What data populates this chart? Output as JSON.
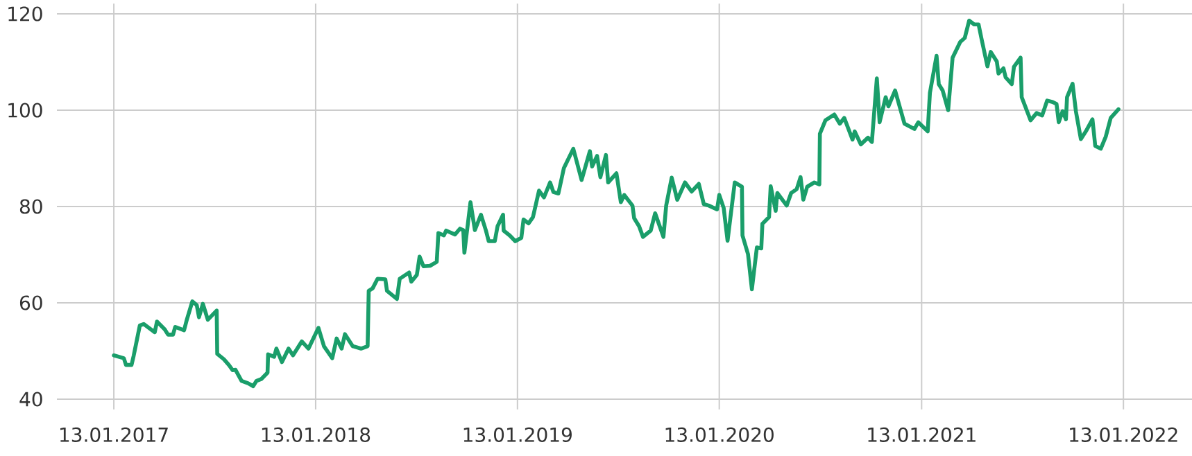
{
  "chart_data": {
    "type": "line",
    "color": "#1a9e6a",
    "grid": true,
    "xlim": [
      "2016-10-02",
      "2022-05-17"
    ],
    "ylim": [
      40,
      120
    ],
    "xticks": [
      {
        "value": "2017-01-13",
        "label": "13.01.2017"
      },
      {
        "value": "2018-01-13",
        "label": "13.01.2018"
      },
      {
        "value": "2019-01-13",
        "label": "13.01.2019"
      },
      {
        "value": "2020-01-13",
        "label": "13.01.2020"
      },
      {
        "value": "2021-01-13",
        "label": "13.01.2021"
      },
      {
        "value": "2022-01-13",
        "label": "13.01.2022"
      }
    ],
    "yticks": [
      40,
      60,
      80,
      100,
      120
    ],
    "x": [
      "2017-01-13",
      "2017-01-31",
      "2017-02-04",
      "2017-02-14",
      "2017-02-18",
      "2017-03-01",
      "2017-03-08",
      "2017-03-28",
      "2017-04-01",
      "2017-04-15",
      "2017-04-21",
      "2017-04-30",
      "2017-05-04",
      "2017-05-20",
      "2017-05-25",
      "2017-06-04",
      "2017-06-12",
      "2017-06-16",
      "2017-06-23",
      "2017-07-02",
      "2017-07-18",
      "2017-07-19",
      "2017-07-31",
      "2017-08-09",
      "2017-08-16",
      "2017-08-21",
      "2017-09-01",
      "2017-09-13",
      "2017-09-22",
      "2017-09-28",
      "2017-10-07",
      "2017-10-18",
      "2017-10-19",
      "2017-10-30",
      "2017-11-03",
      "2017-11-13",
      "2017-11-25",
      "2017-12-03",
      "2017-12-19",
      "2017-12-31",
      "2018-01-18",
      "2018-01-28",
      "2018-02-12",
      "2018-02-20",
      "2018-03-01",
      "2018-03-07",
      "2018-03-21",
      "2018-04-05",
      "2018-04-17",
      "2018-04-19",
      "2018-04-26",
      "2018-05-05",
      "2018-05-19",
      "2018-05-22",
      "2018-06-09",
      "2018-06-14",
      "2018-07-01",
      "2018-07-05",
      "2018-07-15",
      "2018-07-20",
      "2018-07-27",
      "2018-08-08",
      "2018-08-20",
      "2018-08-23",
      "2018-09-02",
      "2018-09-06",
      "2018-09-22",
      "2018-10-01",
      "2018-10-07",
      "2018-10-09",
      "2018-10-20",
      "2018-10-28",
      "2018-11-08",
      "2018-11-17",
      "2018-11-22",
      "2018-12-03",
      "2018-12-08",
      "2018-12-18",
      "2018-12-19",
      "2018-12-30",
      "2019-01-09",
      "2019-01-20",
      "2019-01-24",
      "2019-02-02",
      "2019-02-10",
      "2019-02-21",
      "2019-03-02",
      "2019-03-13",
      "2019-03-19",
      "2019-03-28",
      "2019-04-07",
      "2019-04-24",
      "2019-05-09",
      "2019-05-24",
      "2019-05-28",
      "2019-06-06",
      "2019-06-12",
      "2019-06-22",
      "2019-06-26",
      "2019-07-11",
      "2019-07-19",
      "2019-07-25",
      "2019-08-09",
      "2019-08-12",
      "2019-08-21",
      "2019-08-28",
      "2019-09-11",
      "2019-09-19",
      "2019-10-04",
      "2019-10-09",
      "2019-10-19",
      "2019-10-29",
      "2019-11-12",
      "2019-11-24",
      "2019-12-07",
      "2019-12-16",
      "2019-12-25",
      "2020-01-09",
      "2020-01-13",
      "2020-01-21",
      "2020-01-28",
      "2020-02-10",
      "2020-02-23",
      "2020-02-24",
      "2020-03-05",
      "2020-03-12",
      "2020-03-21",
      "2020-03-29",
      "2020-03-31",
      "2020-04-12",
      "2020-04-15",
      "2020-04-24",
      "2020-04-27",
      "2020-05-14",
      "2020-05-22",
      "2020-06-01",
      "2020-06-08",
      "2020-06-13",
      "2020-06-20",
      "2020-07-03",
      "2020-07-12",
      "2020-07-13",
      "2020-07-23",
      "2020-08-08",
      "2020-08-18",
      "2020-08-26",
      "2020-09-10",
      "2020-09-14",
      "2020-09-25",
      "2020-10-08",
      "2020-10-15",
      "2020-10-24",
      "2020-10-29",
      "2020-11-09",
      "2020-11-14",
      "2020-11-26",
      "2020-12-13",
      "2020-12-31",
      "2021-01-07",
      "2021-01-24",
      "2021-01-28",
      "2021-02-09",
      "2021-02-13",
      "2021-02-20",
      "2021-03-02",
      "2021-03-10",
      "2021-03-24",
      "2021-04-01",
      "2021-04-09",
      "2021-04-18",
      "2021-04-26",
      "2021-05-01",
      "2021-05-12",
      "2021-05-18",
      "2021-05-29",
      "2021-06-01",
      "2021-06-10",
      "2021-06-14",
      "2021-06-25",
      "2021-06-29",
      "2021-07-11",
      "2021-07-13",
      "2021-07-29",
      "2021-08-09",
      "2021-08-19",
      "2021-08-28",
      "2021-09-07",
      "2021-09-14",
      "2021-09-18",
      "2021-09-25",
      "2021-10-01",
      "2021-10-03",
      "2021-10-13",
      "2021-10-19",
      "2021-10-28",
      "2021-11-06",
      "2021-11-18",
      "2021-11-23",
      "2021-12-03",
      "2021-12-12",
      "2021-12-21",
      "2022-01-04"
    ],
    "values": [
      49.1,
      48.5,
      47.1,
      47.1,
      49.1,
      55.3,
      55.6,
      53.9,
      56.1,
      54.5,
      53.4,
      53.4,
      55.0,
      54.3,
      56.5,
      60.3,
      59.5,
      57.0,
      59.8,
      56.5,
      58.4,
      49.4,
      48.3,
      47.1,
      46.0,
      46.1,
      43.8,
      43.3,
      42.7,
      43.8,
      44.2,
      45.5,
      49.3,
      48.8,
      50.5,
      47.7,
      50.5,
      49.1,
      52.0,
      50.5,
      54.8,
      51.0,
      48.5,
      52.6,
      50.5,
      53.5,
      51.0,
      50.5,
      51.0,
      62.5,
      63.0,
      65.0,
      64.9,
      62.5,
      60.8,
      65.0,
      66.3,
      64.4,
      65.8,
      69.6,
      67.6,
      67.7,
      68.5,
      74.5,
      74.0,
      75.0,
      74.2,
      75.4,
      75.1,
      70.4,
      80.9,
      75.1,
      78.3,
      75.0,
      72.8,
      72.8,
      75.9,
      78.3,
      75.0,
      74.0,
      72.8,
      73.5,
      77.3,
      76.5,
      77.8,
      83.3,
      81.9,
      85.0,
      83.0,
      82.7,
      88.0,
      92.0,
      85.5,
      91.5,
      88.3,
      90.5,
      86.1,
      90.7,
      85.0,
      86.9,
      80.9,
      82.4,
      80.2,
      77.6,
      75.9,
      73.7,
      75.0,
      78.6,
      73.7,
      80.2,
      86.0,
      81.4,
      85.0,
      83.1,
      84.7,
      80.5,
      80.2,
      79.4,
      82.4,
      79.7,
      72.9,
      85.0,
      84.1,
      74.0,
      70.1,
      62.8,
      71.5,
      71.3,
      76.4,
      77.8,
      84.2,
      79.1,
      82.8,
      80.2,
      82.8,
      83.6,
      86.1,
      81.4,
      84.1,
      85.0,
      84.6,
      95.1,
      97.9,
      99.1,
      97.2,
      98.4,
      93.9,
      95.6,
      92.9,
      94.3,
      93.4,
      106.6,
      97.5,
      102.7,
      100.8,
      104.1,
      97.2,
      96.1,
      97.5,
      95.6,
      103.6,
      111.3,
      105.4,
      104.1,
      100.0,
      110.9,
      114.2,
      115.0,
      118.6,
      117.8,
      117.8,
      115.0,
      109.1,
      112.1,
      110.1,
      107.6,
      108.7,
      106.8,
      105.4,
      109.0,
      110.9,
      102.7,
      97.9,
      99.4,
      98.9,
      102.0,
      101.7,
      101.3,
      97.5,
      99.8,
      98.1,
      102.7,
      105.5,
      99.8,
      94.0,
      95.6,
      98.1,
      92.6,
      92.0,
      94.5,
      98.4,
      100.2
    ]
  }
}
